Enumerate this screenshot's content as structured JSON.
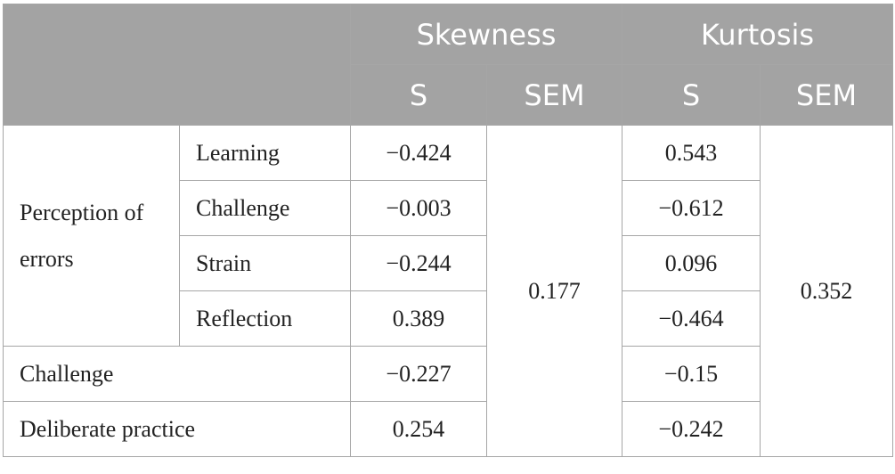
{
  "header": {
    "group1": "Skewness",
    "group2": "Kurtosis",
    "sub": [
      "S",
      "SEM",
      "S",
      "SEM"
    ]
  },
  "rows": {
    "perception_group_line1": "Perception of",
    "perception_group_line2": "errors",
    "learning": {
      "label": "Learning",
      "skew": "−0.424",
      "kurt": "0.543"
    },
    "challenge_sub": {
      "label": "Challenge",
      "skew": "−0.003",
      "kurt": "−0.612"
    },
    "strain": {
      "label": "Strain",
      "skew": "−0.244",
      "kurt": "0.096"
    },
    "reflection": {
      "label": "Reflection",
      "skew": "0.389",
      "kurt": "−0.464"
    },
    "challenge": {
      "label": "Challenge",
      "skew": "−0.227",
      "kurt": "−0.15"
    },
    "deliberate": {
      "label": "Deliberate practice",
      "skew": "0.254",
      "kurt": "−0.242"
    },
    "skew_sem": "0.177",
    "kurt_sem": "0.352"
  }
}
